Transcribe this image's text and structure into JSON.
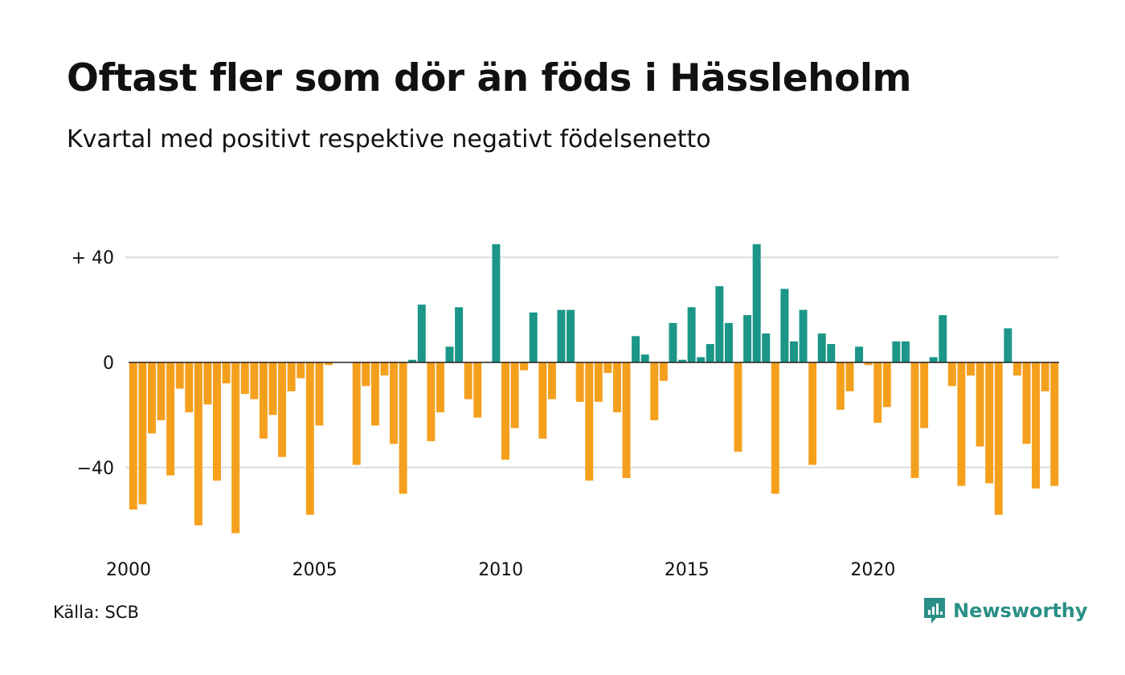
{
  "title": "Oftast fler som dör än föds i Hässleholm",
  "subtitle": "Kvartal med positivt respektive negativt födelsenetto",
  "source": "Källa: SCB",
  "logo": {
    "text": "Newsworthy",
    "icon": "newsworthy-logo-icon"
  },
  "colors": {
    "positive": "#1b9688",
    "negative": "#f5a01d",
    "grid": "#dddddd",
    "zero": "#222222"
  },
  "chart_data": {
    "type": "bar",
    "x_start": "2000 Q1",
    "x_ticks": [
      "2000",
      "2005",
      "2010",
      "2015",
      "2020"
    ],
    "y_ticks": [
      {
        "value": 40,
        "label": "+ 40"
      },
      {
        "value": 0,
        "label": "0"
      },
      {
        "value": -40,
        "label": "−40"
      }
    ],
    "ylim": [
      -68,
      46
    ],
    "grid": true,
    "values": [
      -56,
      -54,
      -27,
      -22,
      -43,
      -10,
      -19,
      -62,
      -16,
      -45,
      -8,
      -65,
      -12,
      -14,
      -29,
      -20,
      -36,
      -11,
      -6,
      -58,
      -24,
      -1,
      0,
      0,
      -39,
      -9,
      -24,
      -5,
      -31,
      -50,
      1,
      22,
      -30,
      -19,
      6,
      21,
      -14,
      -21,
      0,
      45,
      -37,
      -25,
      -3,
      19,
      -29,
      -14,
      20,
      20,
      -15,
      -45,
      -15,
      -4,
      -19,
      -44,
      10,
      3,
      -22,
      -7,
      15,
      1,
      21,
      2,
      7,
      29,
      15,
      -34,
      18,
      45,
      11,
      -50,
      28,
      8,
      20,
      -39,
      11,
      7,
      -18,
      -11,
      6,
      -1,
      -23,
      -17,
      8,
      8,
      -44,
      -25,
      2,
      18,
      -9,
      -47,
      -5,
      -32,
      -46,
      -58,
      13,
      -5,
      -31,
      -48,
      -11,
      -47
    ]
  }
}
